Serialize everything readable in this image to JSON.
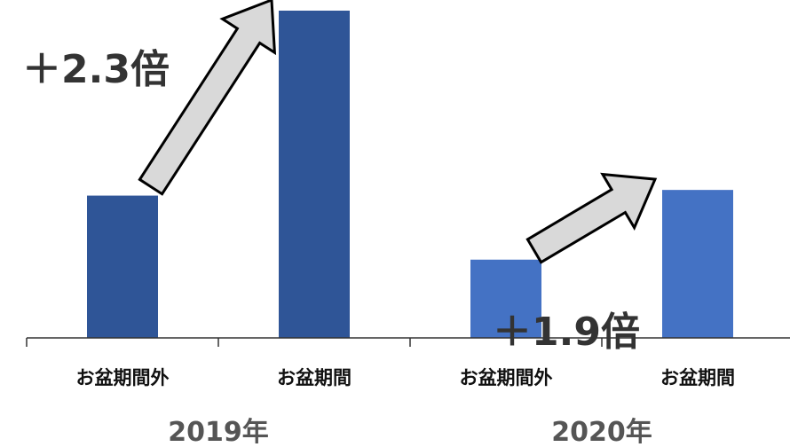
{
  "chart_data": {
    "type": "bar",
    "groups": [
      {
        "label": "2019年",
        "categories": [
          "お盆期間外",
          "お盆期間"
        ],
        "values": [
          1.0,
          2.3
        ],
        "color": "#2F5597"
      },
      {
        "label": "2020年",
        "categories": [
          "お盆期間外",
          "お盆期間"
        ],
        "values": [
          0.55,
          1.04
        ],
        "color": "#4472C4"
      }
    ],
    "annotations": [
      {
        "text": "＋2.3倍",
        "group": 0
      },
      {
        "text": "＋1.9倍",
        "group": 1
      }
    ],
    "ylim": [
      0,
      2.3
    ],
    "y_axis_visible": false,
    "grid": false,
    "arrow_fill": "#D9D9D9",
    "arrow_stroke": "#000000"
  }
}
